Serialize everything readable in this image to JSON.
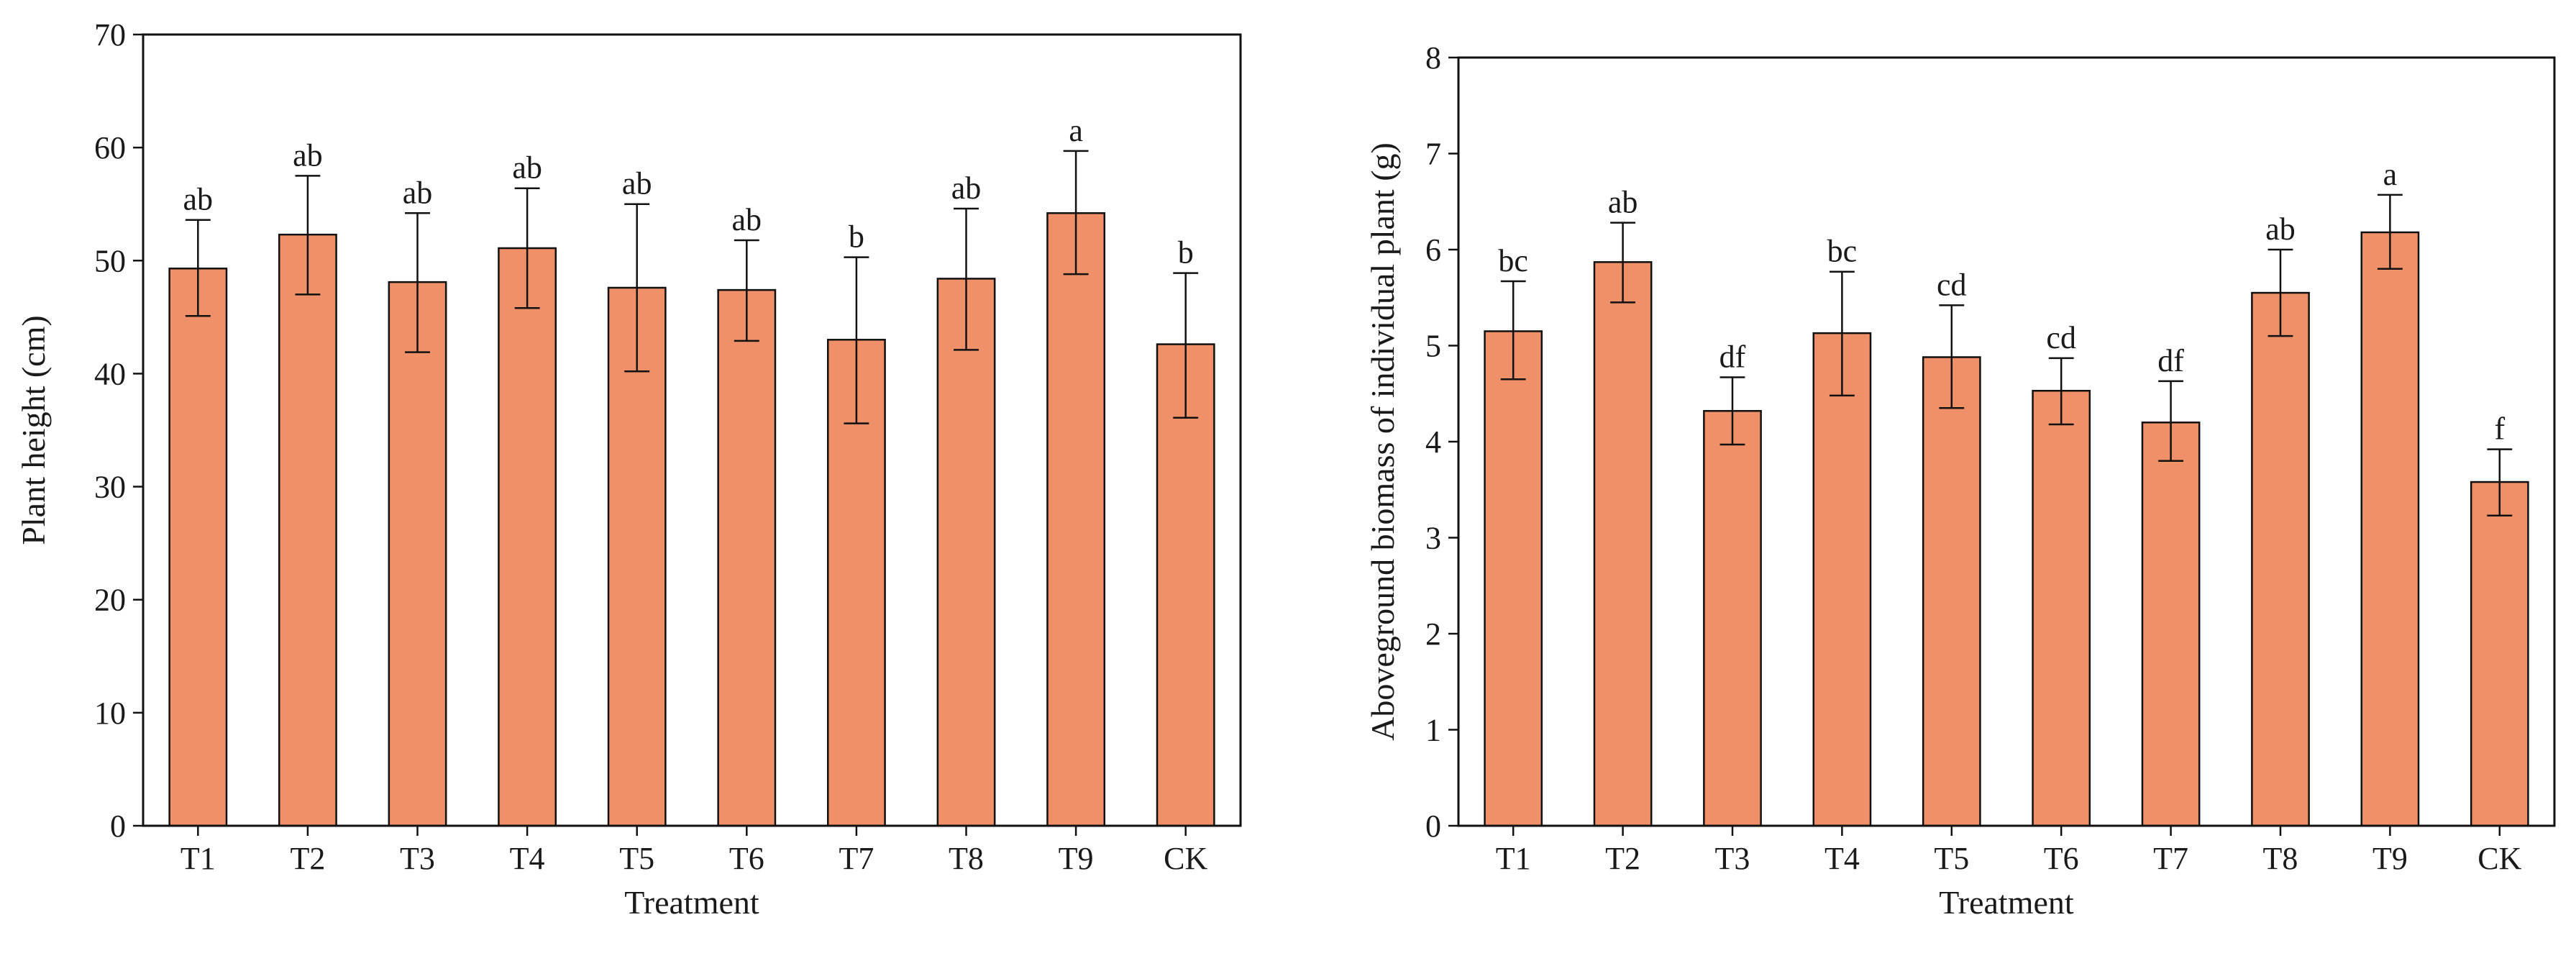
{
  "colors": {
    "bar": "#ef9068",
    "stroke": "#111111"
  },
  "chart_data": [
    {
      "type": "bar",
      "title": "",
      "xlabel": "Treatment",
      "ylabel": "Plant height (cm)",
      "ylim": [
        0,
        70
      ],
      "yticks": [
        0,
        10,
        20,
        30,
        40,
        50,
        60,
        70
      ],
      "grid": false,
      "categories": [
        "T1",
        "T2",
        "T3",
        "T4",
        "T5",
        "T6",
        "T7",
        "T8",
        "T9",
        "CK"
      ],
      "values": [
        49.3,
        52.3,
        48.1,
        51.1,
        47.6,
        47.4,
        43.0,
        48.4,
        54.2,
        42.6
      ],
      "error_low": [
        45.1,
        47.0,
        41.9,
        45.8,
        40.2,
        42.9,
        35.6,
        42.1,
        48.8,
        36.1
      ],
      "error_high": [
        53.6,
        57.5,
        54.2,
        56.4,
        55.0,
        51.8,
        50.3,
        54.6,
        59.7,
        48.9
      ],
      "significance": [
        "ab",
        "ab",
        "ab",
        "ab",
        "ab",
        "ab",
        "b",
        "ab",
        "a",
        "b"
      ]
    },
    {
      "type": "bar",
      "title": "",
      "xlabel": "Treatment",
      "ylabel": "Aboveground biomass of individual plant (g)",
      "ylim": [
        0,
        8
      ],
      "yticks": [
        0,
        1,
        2,
        3,
        4,
        5,
        6,
        7,
        8
      ],
      "grid": false,
      "categories": [
        "T1",
        "T2",
        "T3",
        "T4",
        "T5",
        "T6",
        "T7",
        "T8",
        "T9",
        "CK"
      ],
      "values": [
        5.15,
        5.87,
        4.32,
        5.13,
        4.88,
        4.53,
        4.2,
        5.55,
        6.18,
        3.58
      ],
      "error_low": [
        4.65,
        5.45,
        3.97,
        4.48,
        4.35,
        4.18,
        3.8,
        5.1,
        5.8,
        3.23
      ],
      "error_high": [
        5.67,
        6.28,
        4.67,
        5.77,
        5.42,
        4.87,
        4.63,
        6.0,
        6.57,
        3.92
      ],
      "significance": [
        "bc",
        "ab",
        "df",
        "bc",
        "cd",
        "cd",
        "df",
        "ab",
        "a",
        "f"
      ]
    }
  ]
}
